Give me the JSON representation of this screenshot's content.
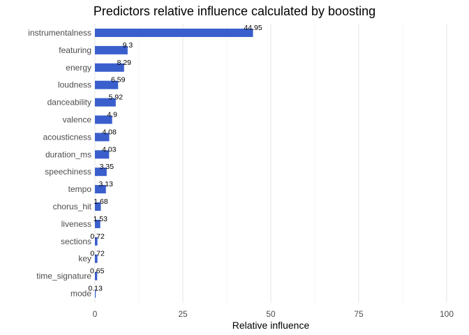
{
  "chart_data": {
    "type": "bar",
    "orientation": "horizontal",
    "title": "Predictors relative influence calculated by boosting",
    "xlabel": "Relative influence",
    "ylabel": "",
    "xlim": [
      0,
      100
    ],
    "xticks": [
      0,
      25,
      50,
      75,
      100
    ],
    "grid": true,
    "bar_color": "#3a5fcd",
    "categories": [
      "instrumentalness",
      "featuring",
      "energy",
      "loudness",
      "danceability",
      "valence",
      "acousticness",
      "duration_ms",
      "speechiness",
      "tempo",
      "chorus_hit",
      "liveness",
      "sections",
      "key",
      "time_signature",
      "mode"
    ],
    "values": [
      44.95,
      9.3,
      8.29,
      6.59,
      5.92,
      4.9,
      4.08,
      4.03,
      3.35,
      3.13,
      1.68,
      1.53,
      0.72,
      0.72,
      0.65,
      0.13
    ],
    "data_labels": [
      "44.95",
      "9.3",
      "8.29",
      "6.59",
      "5.92",
      "4.9",
      "4.08",
      "4.03",
      "3.35",
      "3.13",
      "1.68",
      "1.53",
      "0.72",
      "0.72",
      "0.65",
      "0.13"
    ]
  }
}
